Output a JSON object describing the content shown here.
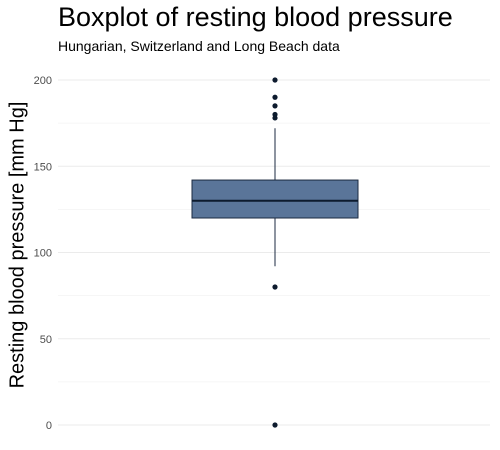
{
  "chart_data": {
    "type": "boxplot",
    "title": "Boxplot of resting blood pressure",
    "subtitle": "Hungarian, Switzerland and Long Beach data",
    "ylabel": "Resting blood pressure [mm Hg]",
    "xlabel": "",
    "ylim": [
      0,
      200
    ],
    "yticks": [
      0,
      50,
      100,
      150,
      200
    ],
    "grid": true,
    "box": {
      "q1": 120,
      "median": 130,
      "q3": 142,
      "whisker_low": 92,
      "whisker_high": 172
    },
    "outliers": [
      200,
      190,
      185,
      180,
      178,
      80,
      0
    ],
    "colors": {
      "box_fill": "#5a7599",
      "box_stroke": "#1b2a41",
      "median": "#0d1b2e",
      "outlier": "#0d1b2e",
      "grid": "#ebebeb"
    }
  }
}
